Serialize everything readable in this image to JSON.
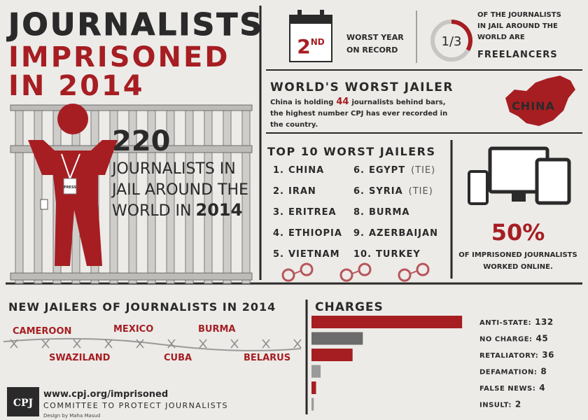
{
  "title": {
    "line1": "JOURNALISTS",
    "line2": "IMPRISONED",
    "line3": "IN 2014"
  },
  "jail": {
    "count": 220,
    "line1": "JOURNALISTS IN",
    "line2": "JAIL AROUND THE",
    "line3": "WORLD IN",
    "year": "2014",
    "badge": "PRESS"
  },
  "worst_year": {
    "rank": "2",
    "suffix": "ND",
    "line1": "WORST YEAR",
    "line2": "ON RECORD"
  },
  "freelancers": {
    "fraction": "1/3",
    "line1": "OF THE JOURNALISTS",
    "line2": "IN JAIL AROUND THE",
    "line3": "WORLD ARE",
    "line4": "FREELANCERS"
  },
  "worst_jailer": {
    "heading": "WORLD'S WORST JAILER",
    "line1_before": "China is holding",
    "number": 44,
    "line1_after": "journalists behind bars,",
    "line2": "the highest number CPJ has ever recorded in",
    "line3": "the country.",
    "map_label": "CHINA"
  },
  "top10": {
    "heading": "TOP 10 WORST JAILERS",
    "items": [
      {
        "rank": "1.",
        "name": "CHINA"
      },
      {
        "rank": "2.",
        "name": "IRAN"
      },
      {
        "rank": "3.",
        "name": "ERITREA"
      },
      {
        "rank": "4.",
        "name": "ETHIOPIA"
      },
      {
        "rank": "5.",
        "name": "VIETNAM"
      },
      {
        "rank": "6.",
        "name": "EGYPT",
        "note": "(TIE)"
      },
      {
        "rank": "6.",
        "name": "SYRIA",
        "note": "(TIE)"
      },
      {
        "rank": "8.",
        "name": "BURMA"
      },
      {
        "rank": "9.",
        "name": "AZERBAIJAN"
      },
      {
        "rank": "10.",
        "name": "TURKEY"
      }
    ]
  },
  "online": {
    "percent": "50%",
    "line1": "OF IMPRISONED JOURNALISTS",
    "line2": "WORKED ONLINE."
  },
  "new_jailers": {
    "heading": "NEW JAILERS OF JOURNALISTS IN 2014",
    "countries": [
      "CAMEROON",
      "MEXICO",
      "BURMA",
      "SWAZILAND",
      "CUBA",
      "BELARUS"
    ]
  },
  "charges": {
    "heading": "CHARGES",
    "items": [
      {
        "label": "ANTI-STATE:",
        "value": 132
      },
      {
        "label": "NO CHARGE:",
        "value": 45
      },
      {
        "label": "RETALIATORY:",
        "value": 36
      },
      {
        "label": "DEFAMATION:",
        "value": 8
      },
      {
        "label": "FALSE NEWS:",
        "value": 4
      },
      {
        "label": "INSULT:",
        "value": 2
      }
    ]
  },
  "footer": {
    "logo": "CPJ",
    "url": "www.cpj.org/imprisoned",
    "org": "COMMITTEE TO PROTECT JOURNALISTS",
    "credit": "Design by Maha Masud"
  }
}
